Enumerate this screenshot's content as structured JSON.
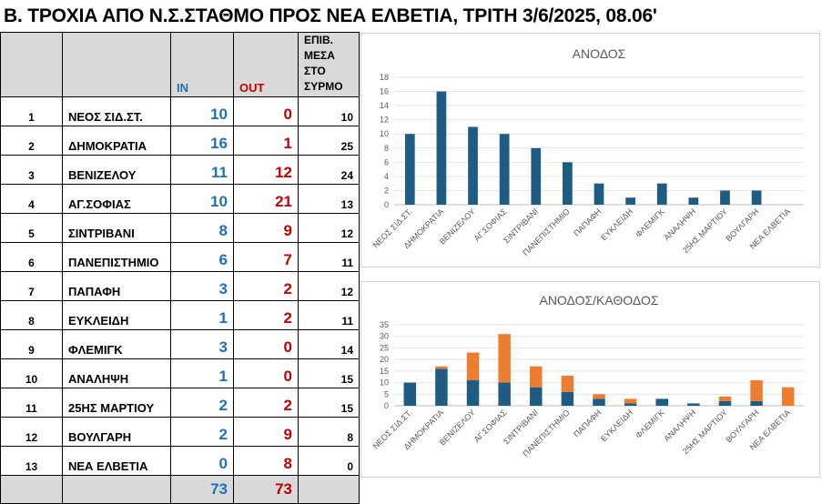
{
  "title": "Β. ΤΡΟΧΙΑ ΑΠΟ Ν.Σ.ΣΤΑΘΜΟ ΠΡΟΣ ΝΕΑ ΕΛΒΕΤΙΑ, ΤΡΙΤΗ 3/6/2025, 08.06'",
  "table": {
    "headers": {
      "in": "IN",
      "out": "OUT",
      "onboard": "ΕΠΙΒ. ΜΕΣΑ ΣΤΟ ΣΥΡΜΟ"
    },
    "rows": [
      {
        "n": "1",
        "name": "ΝΕΟΣ ΣΙΔ.ΣΤ.",
        "in": "10",
        "out": "0",
        "onboard": "10"
      },
      {
        "n": "2",
        "name": "ΔΗΜΟΚΡΑΤΙΑ",
        "in": "16",
        "out": "1",
        "onboard": "25"
      },
      {
        "n": "3",
        "name": "ΒΕΝΙΖΕΛΟΥ",
        "in": "11",
        "out": "12",
        "onboard": "24"
      },
      {
        "n": "4",
        "name": "ΑΓ.ΣΟΦΙΑΣ",
        "in": "10",
        "out": "21",
        "onboard": "13"
      },
      {
        "n": "5",
        "name": "ΣΙΝΤΡΙΒΑΝΙ",
        "in": "8",
        "out": "9",
        "onboard": "12"
      },
      {
        "n": "6",
        "name": "ΠΑΝΕΠΙΣΤΗΜΙΟ",
        "in": "6",
        "out": "7",
        "onboard": "11"
      },
      {
        "n": "7",
        "name": "ΠΑΠΑΦΗ",
        "in": "3",
        "out": "2",
        "onboard": "12"
      },
      {
        "n": "8",
        "name": "ΕΥΚΛΕΙΔΗ",
        "in": "1",
        "out": "2",
        "onboard": "11"
      },
      {
        "n": "9",
        "name": "ΦΛΕΜΙΓΚ",
        "in": "3",
        "out": "0",
        "onboard": "14"
      },
      {
        "n": "10",
        "name": "ΑΝΑΛΗΨΗ",
        "in": "1",
        "out": "0",
        "onboard": "15"
      },
      {
        "n": "11",
        "name": "25ΗΣ ΜΑΡΤΙΟΥ",
        "in": "2",
        "out": "2",
        "onboard": "15"
      },
      {
        "n": "12",
        "name": "ΒΟΥΛΓΑΡΗ",
        "in": "2",
        "out": "9",
        "onboard": "8"
      },
      {
        "n": "13",
        "name": "ΝΕΑ ΕΛΒΕΤΙΑ",
        "in": "0",
        "out": "8",
        "onboard": "0"
      }
    ],
    "totals": {
      "in": "73",
      "out": "73"
    }
  },
  "chart_data": [
    {
      "type": "bar",
      "title": "ΑΝΟΔΟΣ",
      "categories": [
        "ΝΕΟΣ ΣΙΔ.ΣΤ.",
        "ΔΗΜΟΚΡΑΤΙΑ",
        "ΒΕΝΙΖΕΛΟΥ",
        "ΑΓ.ΣΟΦΙΑΣ",
        "ΣΙΝΤΡΙΒΑΝΙ",
        "ΠΑΝΕΠΙΣΤΗΜΙΟ",
        "ΠΑΠΑΦΗ",
        "ΕΥΚΛΕΙΔΗ",
        "ΦΛΕΜΙΓΚ",
        "ΑΝΑΛΗΨΗ",
        "25ΗΣ ΜΑΡΤΙΟΥ",
        "ΒΟΥΛΓΑΡΗ",
        "ΝΕΑ ΕΛΒΕΤΙΑ"
      ],
      "series": [
        {
          "values": [
            10,
            16,
            11,
            10,
            8,
            6,
            3,
            1,
            3,
            1,
            2,
            2,
            0
          ],
          "color": "#1f5c83"
        }
      ],
      "ylim": [
        0,
        18
      ],
      "yticks": [
        0,
        2,
        4,
        6,
        8,
        10,
        12,
        14,
        16,
        18
      ],
      "grid": true
    },
    {
      "type": "bar",
      "stacked": true,
      "title": "ΑΝΟΔΟΣ/ΚΑΘΟΔΟΣ",
      "categories": [
        "ΝΕΟΣ ΣΙΔ.ΣΤ.",
        "ΔΗΜΟΚΡΑΤΙΑ",
        "ΒΕΝΙΖΕΛΟΥ",
        "ΑΓ.ΣΟΦΙΑΣ",
        "ΣΙΝΤΡΙΒΑΝΙ",
        "ΠΑΝΕΠΙΣΤΗΜΙΟ",
        "ΠΑΠΑΦΗ",
        "ΕΥΚΛΕΙΔΗ",
        "ΦΛΕΜΙΓΚ",
        "ΑΝΑΛΗΨΗ",
        "25ΗΣ ΜΑΡΤΙΟΥ",
        "ΒΟΥΛΓΑΡΗ",
        "ΝΕΑ ΕΛΒΕΤΙΑ"
      ],
      "series": [
        {
          "values": [
            10,
            16,
            11,
            10,
            8,
            6,
            3,
            1,
            3,
            1,
            2,
            2,
            0
          ],
          "color": "#1f5c83"
        },
        {
          "values": [
            0,
            1,
            12,
            21,
            9,
            7,
            2,
            2,
            0,
            0,
            2,
            9,
            8
          ],
          "color": "#ed7d31"
        }
      ],
      "ylim": [
        0,
        35
      ],
      "yticks": [
        0,
        5,
        10,
        15,
        20,
        25,
        30,
        35
      ],
      "grid": true
    }
  ]
}
